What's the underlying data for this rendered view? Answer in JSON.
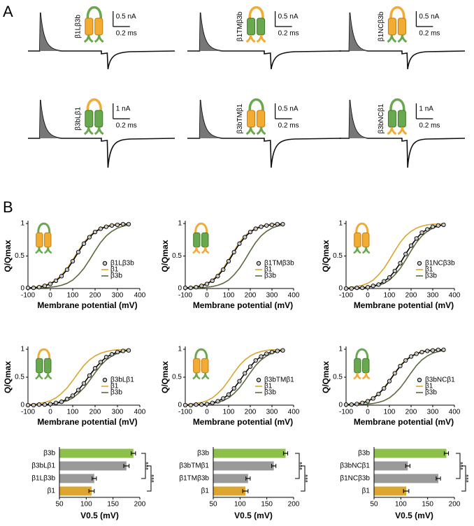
{
  "panel_a": {
    "label": "A",
    "traces": [
      {
        "construct": "β1Lβ3b",
        "current_scale": "0.5 nA",
        "time_scale": "0.2 ms"
      },
      {
        "construct": "β1TMβ3b",
        "current_scale": "0.5 nA",
        "time_scale": "0.2 ms"
      },
      {
        "construct": "β1NCβ3b",
        "current_scale": "0.5 nA",
        "time_scale": "0.2 ms"
      },
      {
        "construct": "β3bLβ1",
        "current_scale": "1 nA",
        "time_scale": "0.2 ms"
      },
      {
        "construct": "β3bTMβ1",
        "current_scale": "0.5 nA",
        "time_scale": "0.2 ms"
      },
      {
        "construct": "β3bNCβ1",
        "current_scale": "1 nA",
        "time_scale": "0.2 ms"
      }
    ]
  },
  "panel_b_label": "B",
  "chart_data": [
    {
      "type": "line",
      "ylabel": "Q/Qmax",
      "xlabel": "Membrane potential (mV)",
      "x": [
        -100,
        -75,
        -50,
        -25,
        0,
        25,
        50,
        75,
        100,
        125,
        150,
        175,
        200,
        225,
        250,
        275,
        300,
        325,
        350
      ],
      "xlim": [
        -100,
        400
      ],
      "xticks": [
        -100,
        0,
        100,
        200,
        300,
        400
      ],
      "ylim": [
        0,
        1
      ],
      "yticks": [
        0,
        0.5,
        1
      ],
      "series": [
        {
          "name": "β1Lβ3b",
          "color": "#000000",
          "marker": true,
          "values": [
            0.01,
            0.01,
            0.02,
            0.04,
            0.07,
            0.12,
            0.19,
            0.29,
            0.42,
            0.56,
            0.69,
            0.79,
            0.87,
            0.92,
            0.95,
            0.97,
            0.98,
            0.99,
            0.99
          ]
        },
        {
          "name": "β1",
          "color": "#d9a62e",
          "values": [
            0.01,
            0.02,
            0.03,
            0.05,
            0.08,
            0.13,
            0.21,
            0.31,
            0.44,
            0.58,
            0.71,
            0.81,
            0.88,
            0.93,
            0.96,
            0.98,
            0.99,
            0.99,
            1.0
          ]
        },
        {
          "name": "β3b",
          "color": "#5b6b3c",
          "values": [
            0.0,
            0.0,
            0.01,
            0.01,
            0.02,
            0.03,
            0.05,
            0.08,
            0.13,
            0.21,
            0.31,
            0.44,
            0.58,
            0.71,
            0.81,
            0.88,
            0.93,
            0.96,
            0.98
          ]
        }
      ]
    },
    {
      "type": "line",
      "ylabel": "Q/Qmax",
      "xlabel": "Membrane potential (mV)",
      "x": [
        -100,
        -75,
        -50,
        -25,
        0,
        25,
        50,
        75,
        100,
        125,
        150,
        175,
        200,
        225,
        250,
        275,
        300,
        325,
        350
      ],
      "xlim": [
        -100,
        400
      ],
      "xticks": [
        -100,
        0,
        100,
        200,
        300,
        400
      ],
      "ylim": [
        0,
        1
      ],
      "yticks": [
        0,
        0.5,
        1
      ],
      "series": [
        {
          "name": "β1TMβ3b",
          "color": "#000000",
          "marker": true,
          "values": [
            0.01,
            0.01,
            0.02,
            0.04,
            0.07,
            0.12,
            0.19,
            0.29,
            0.42,
            0.56,
            0.69,
            0.79,
            0.87,
            0.92,
            0.95,
            0.97,
            0.98,
            0.99,
            0.99
          ]
        },
        {
          "name": "β1",
          "color": "#d9a62e",
          "values": [
            0.01,
            0.02,
            0.03,
            0.05,
            0.08,
            0.13,
            0.21,
            0.31,
            0.44,
            0.58,
            0.71,
            0.81,
            0.88,
            0.93,
            0.96,
            0.98,
            0.99,
            0.99,
            1.0
          ]
        },
        {
          "name": "β3b",
          "color": "#5b6b3c",
          "values": [
            0.0,
            0.0,
            0.01,
            0.01,
            0.02,
            0.03,
            0.05,
            0.08,
            0.13,
            0.21,
            0.31,
            0.44,
            0.58,
            0.71,
            0.81,
            0.88,
            0.93,
            0.96,
            0.98
          ]
        }
      ]
    },
    {
      "type": "line",
      "ylabel": "Q/Qmax",
      "xlabel": "Membrane potential (mV)",
      "x": [
        -100,
        -75,
        -50,
        -25,
        0,
        25,
        50,
        75,
        100,
        125,
        150,
        175,
        200,
        225,
        250,
        275,
        300,
        325,
        350
      ],
      "xlim": [
        -100,
        400
      ],
      "xticks": [
        -100,
        0,
        100,
        200,
        300,
        400
      ],
      "ylim": [
        0,
        1
      ],
      "yticks": [
        0,
        0.5,
        1
      ],
      "series": [
        {
          "name": "β1NCβ3b",
          "color": "#000000",
          "marker": true,
          "values": [
            0.0,
            0.0,
            0.01,
            0.01,
            0.02,
            0.04,
            0.06,
            0.11,
            0.17,
            0.27,
            0.39,
            0.53,
            0.66,
            0.77,
            0.86,
            0.91,
            0.95,
            0.97,
            0.98
          ]
        },
        {
          "name": "β1",
          "color": "#d9a62e",
          "values": [
            0.01,
            0.02,
            0.03,
            0.05,
            0.08,
            0.13,
            0.21,
            0.31,
            0.44,
            0.58,
            0.71,
            0.81,
            0.88,
            0.93,
            0.96,
            0.98,
            0.99,
            0.99,
            1.0
          ]
        },
        {
          "name": "β3b",
          "color": "#5b6b3c",
          "values": [
            0.0,
            0.0,
            0.01,
            0.01,
            0.02,
            0.03,
            0.05,
            0.08,
            0.13,
            0.21,
            0.31,
            0.44,
            0.58,
            0.71,
            0.81,
            0.88,
            0.93,
            0.96,
            0.98
          ]
        }
      ]
    },
    {
      "type": "line",
      "ylabel": "Q/Qmax",
      "xlabel": "Membrane potential (mV)",
      "x": [
        -100,
        -75,
        -50,
        -25,
        0,
        25,
        50,
        75,
        100,
        125,
        150,
        175,
        200,
        225,
        250,
        275,
        300,
        325,
        350
      ],
      "xlim": [
        -100,
        400
      ],
      "xticks": [
        -100,
        0,
        100,
        200,
        300,
        400
      ],
      "ylim": [
        0,
        1
      ],
      "yticks": [
        0,
        0.5,
        1
      ],
      "series": [
        {
          "name": "β3bLβ1",
          "color": "#000000",
          "marker": true,
          "values": [
            0.0,
            0.0,
            0.01,
            0.01,
            0.02,
            0.04,
            0.06,
            0.11,
            0.17,
            0.27,
            0.39,
            0.53,
            0.66,
            0.77,
            0.86,
            0.91,
            0.95,
            0.97,
            0.98
          ]
        },
        {
          "name": "β1",
          "color": "#d9a62e",
          "values": [
            0.01,
            0.02,
            0.03,
            0.05,
            0.08,
            0.13,
            0.21,
            0.31,
            0.44,
            0.58,
            0.71,
            0.81,
            0.88,
            0.93,
            0.96,
            0.98,
            0.99,
            0.99,
            1.0
          ]
        },
        {
          "name": "β3b",
          "color": "#5b6b3c",
          "values": [
            0.0,
            0.0,
            0.01,
            0.01,
            0.02,
            0.03,
            0.05,
            0.08,
            0.13,
            0.21,
            0.31,
            0.44,
            0.58,
            0.71,
            0.81,
            0.88,
            0.93,
            0.96,
            0.98
          ]
        }
      ]
    },
    {
      "type": "line",
      "ylabel": "Q/Qmax",
      "xlabel": "Membrane potential (mV)",
      "x": [
        -100,
        -75,
        -50,
        -25,
        0,
        25,
        50,
        75,
        100,
        125,
        150,
        175,
        200,
        225,
        250,
        275,
        300,
        325,
        350
      ],
      "xlim": [
        -100,
        400
      ],
      "xticks": [
        -100,
        0,
        100,
        200,
        300,
        400
      ],
      "ylim": [
        0,
        1
      ],
      "yticks": [
        0,
        0.5,
        1
      ],
      "series": [
        {
          "name": "β3bTMβ1",
          "color": "#000000",
          "marker": true,
          "values": [
            0.0,
            0.0,
            0.01,
            0.01,
            0.02,
            0.04,
            0.07,
            0.12,
            0.19,
            0.3,
            0.43,
            0.57,
            0.69,
            0.8,
            0.87,
            0.92,
            0.95,
            0.97,
            0.98
          ]
        },
        {
          "name": "β1",
          "color": "#d9a62e",
          "values": [
            0.01,
            0.02,
            0.03,
            0.05,
            0.08,
            0.13,
            0.21,
            0.31,
            0.44,
            0.58,
            0.71,
            0.81,
            0.88,
            0.93,
            0.96,
            0.98,
            0.99,
            0.99,
            1.0
          ]
        },
        {
          "name": "β3b",
          "color": "#5b6b3c",
          "values": [
            0.0,
            0.0,
            0.01,
            0.01,
            0.02,
            0.03,
            0.05,
            0.08,
            0.13,
            0.21,
            0.31,
            0.44,
            0.58,
            0.71,
            0.81,
            0.88,
            0.93,
            0.96,
            0.98
          ]
        }
      ]
    },
    {
      "type": "line",
      "ylabel": "Q/Qmax",
      "xlabel": "Membrane potential (mV)",
      "x": [
        -100,
        -75,
        -50,
        -25,
        0,
        25,
        50,
        75,
        100,
        125,
        150,
        175,
        200,
        225,
        250,
        275,
        300,
        325,
        350
      ],
      "xlim": [
        -100,
        400
      ],
      "xticks": [
        -100,
        0,
        100,
        200,
        300,
        400
      ],
      "ylim": [
        0,
        1
      ],
      "yticks": [
        0,
        0.5,
        1
      ],
      "series": [
        {
          "name": "β3bNCβ1",
          "color": "#000000",
          "marker": true,
          "values": [
            0.01,
            0.01,
            0.02,
            0.04,
            0.07,
            0.12,
            0.2,
            0.3,
            0.43,
            0.57,
            0.7,
            0.8,
            0.87,
            0.92,
            0.95,
            0.97,
            0.98,
            0.99,
            0.99
          ]
        },
        {
          "name": "β1",
          "color": "#d9a62e",
          "values": [
            0.01,
            0.02,
            0.03,
            0.05,
            0.08,
            0.13,
            0.21,
            0.31,
            0.44,
            0.58,
            0.71,
            0.81,
            0.88,
            0.93,
            0.96,
            0.98,
            0.99,
            0.99,
            1.0
          ]
        },
        {
          "name": "β3b",
          "color": "#5b6b3c",
          "values": [
            0.0,
            0.0,
            0.01,
            0.01,
            0.02,
            0.03,
            0.05,
            0.08,
            0.13,
            0.21,
            0.31,
            0.44,
            0.58,
            0.71,
            0.81,
            0.88,
            0.93,
            0.96,
            0.98
          ]
        }
      ]
    },
    {
      "type": "barh",
      "categories": [
        "β3b",
        "β3bLβ1",
        "β1Lβ3b",
        "β1"
      ],
      "values": [
        188,
        175,
        115,
        110
      ],
      "errors": [
        4,
        5,
        4,
        5
      ],
      "colors": [
        "#8dc04a",
        "#9a9a9a",
        "#9a9a9a",
        "#dba530"
      ],
      "xlim": [
        50,
        200
      ],
      "xticks": [
        50,
        100,
        150,
        200
      ],
      "xlabel": "V0.5 (mV)",
      "annotations": [
        "***",
        "***"
      ]
    },
    {
      "type": "barh",
      "categories": [
        "β3b",
        "β3bTMβ1",
        "β1TMβ3b",
        "β1"
      ],
      "values": [
        185,
        163,
        115,
        110
      ],
      "errors": [
        4,
        4,
        4,
        5
      ],
      "colors": [
        "#8dc04a",
        "#9a9a9a",
        "#9a9a9a",
        "#dba530"
      ],
      "xlim": [
        50,
        200
      ],
      "xticks": [
        50,
        100,
        150,
        200
      ],
      "xlabel": "V0.5 (mV)",
      "annotations": [
        "***",
        "***"
      ]
    },
    {
      "type": "barh",
      "categories": [
        "β3b",
        "β3bNCβ1",
        "β1NCβ3b",
        "β1"
      ],
      "values": [
        185,
        113,
        170,
        110
      ],
      "errors": [
        4,
        4,
        4,
        5
      ],
      "colors": [
        "#8dc04a",
        "#9a9a9a",
        "#9a9a9a",
        "#dba530"
      ],
      "xlim": [
        50,
        200
      ],
      "xticks": [
        50,
        100,
        150,
        200
      ],
      "xlabel": "V0.5 (mV)",
      "annotations": [
        "***",
        "***"
      ]
    }
  ]
}
